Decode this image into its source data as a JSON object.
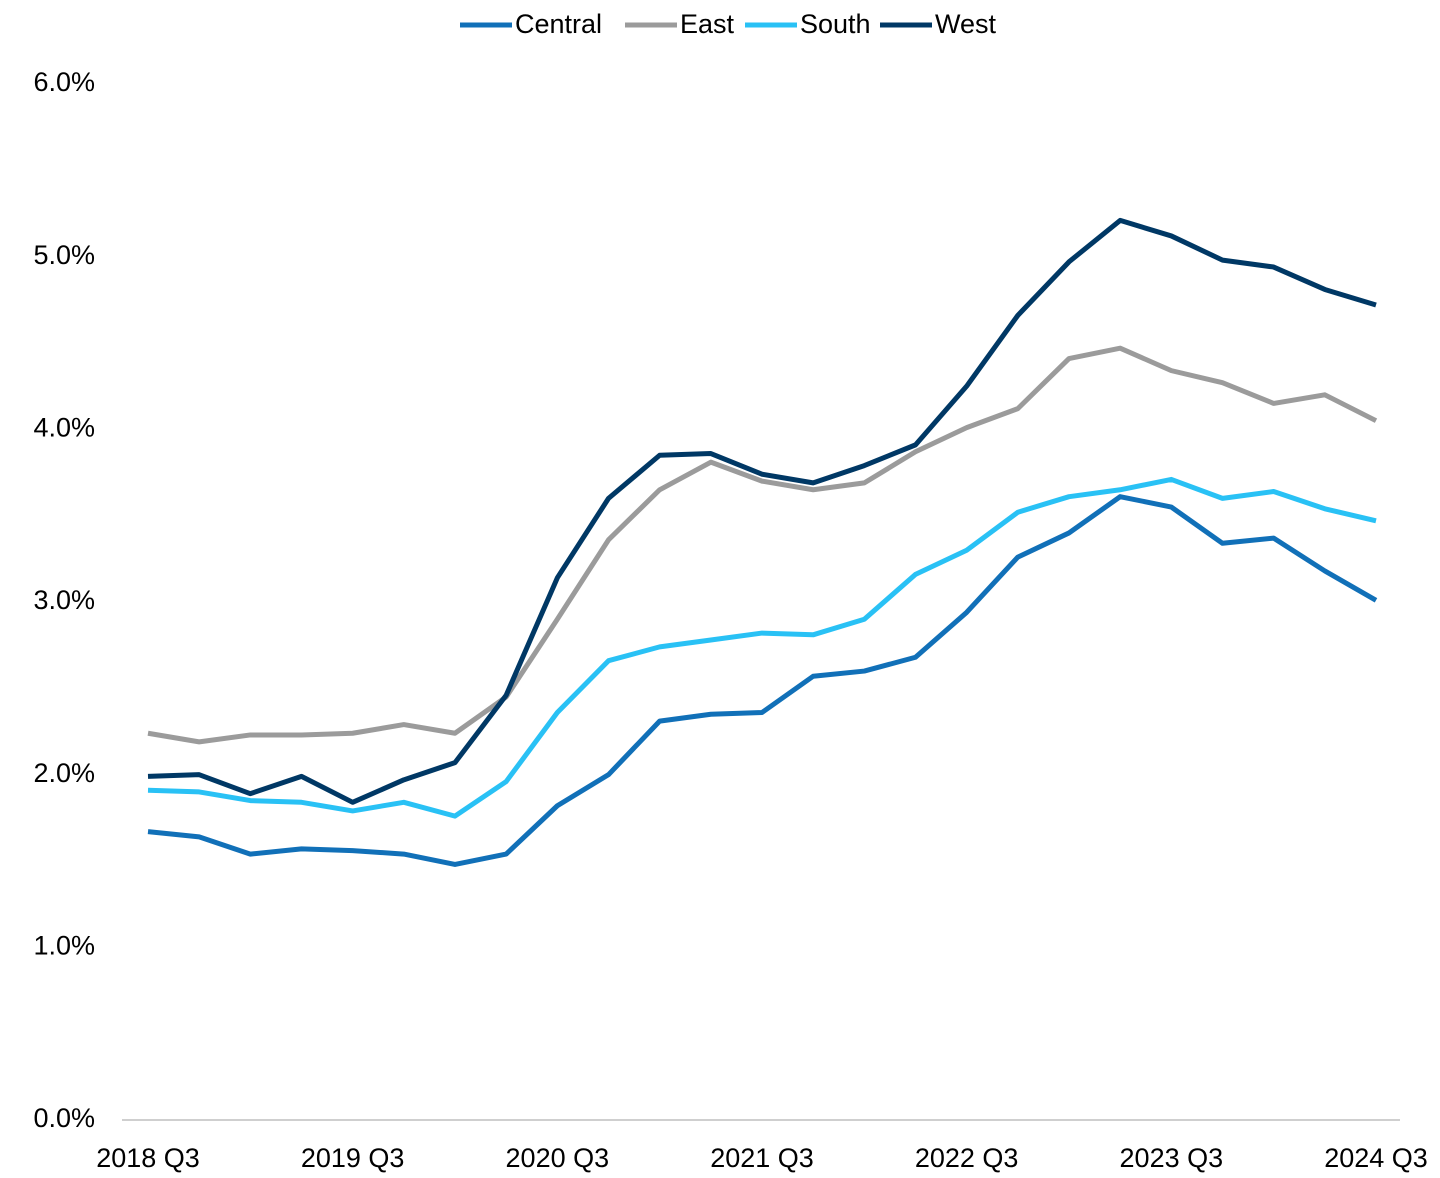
{
  "chart_data": {
    "type": "line",
    "categories": [
      "2018 Q3",
      null,
      null,
      null,
      "2019 Q3",
      null,
      null,
      null,
      "2020 Q3",
      null,
      null,
      null,
      "2021 Q3",
      null,
      null,
      null,
      "2022 Q3",
      null,
      null,
      null,
      "2023 Q3",
      null,
      null,
      null,
      "2024 Q3"
    ],
    "series": [
      {
        "name": "Central",
        "color": "#1170b8",
        "values": [
          1.67,
          1.64,
          1.54,
          1.57,
          1.56,
          1.54,
          1.48,
          1.54,
          1.82,
          2.0,
          2.31,
          2.35,
          2.36,
          2.57,
          2.6,
          2.68,
          2.94,
          3.26,
          3.4,
          3.61,
          3.55,
          3.34,
          3.37,
          3.18,
          3.01
        ]
      },
      {
        "name": "East",
        "color": "#9b9b9b",
        "values": [
          2.24,
          2.19,
          2.23,
          2.23,
          2.24,
          2.29,
          2.24,
          2.45,
          2.9,
          3.36,
          3.65,
          3.81,
          3.7,
          3.65,
          3.69,
          3.87,
          4.01,
          4.12,
          4.41,
          4.47,
          4.34,
          4.27,
          4.15,
          4.2,
          4.05
        ]
      },
      {
        "name": "South",
        "color": "#29c1f5",
        "values": [
          1.91,
          1.9,
          1.85,
          1.84,
          1.79,
          1.84,
          1.76,
          1.96,
          2.36,
          2.66,
          2.74,
          2.78,
          2.82,
          2.81,
          2.9,
          3.16,
          3.3,
          3.52,
          3.61,
          3.65,
          3.71,
          3.6,
          3.64,
          3.54,
          3.47
        ]
      },
      {
        "name": "West",
        "color": "#003865",
        "values": [
          1.99,
          2.0,
          1.89,
          1.99,
          1.84,
          1.97,
          2.07,
          2.46,
          3.14,
          3.6,
          3.85,
          3.86,
          3.74,
          3.69,
          3.79,
          3.91,
          4.25,
          4.66,
          4.97,
          5.21,
          5.12,
          4.98,
          4.94,
          4.81,
          4.72
        ]
      }
    ],
    "ylim": [
      0,
      6
    ],
    "yticks": [
      {
        "value": 0,
        "label": "0.0%"
      },
      {
        "value": 1,
        "label": "1.0%"
      },
      {
        "value": 2,
        "label": "2.0%"
      },
      {
        "value": 3,
        "label": "3.0%"
      },
      {
        "value": 4,
        "label": "4.0%"
      },
      {
        "value": 5,
        "label": "5.0%"
      },
      {
        "value": 6,
        "label": "6.0%"
      }
    ],
    "legend": "top"
  }
}
